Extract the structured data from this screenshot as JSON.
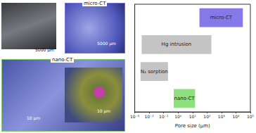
{
  "chart_data": {
    "type": "bar",
    "orientation": "horizontal",
    "categories": [
      "micro-CT",
      "Hg intrusion",
      "N₂ sorption",
      "nano-CT"
    ],
    "start": [
      30,
      0.003,
      0.0025,
      0.5
    ],
    "end": [
      30000,
      200,
      0.2,
      15
    ],
    "colors": [
      "#8479e6",
      "#c4c4c4",
      "#c4c4c4",
      "#8ee07e"
    ],
    "data_labels": true,
    "tick_labels": "x",
    "log": "x",
    "x_label": "Pore size (μm)",
    "xlim": [
      0.001,
      100000
    ],
    "xticks": [
      {
        "value": 0.001,
        "label": "10⁻³"
      },
      {
        "value": 0.01,
        "label": "10⁻²"
      },
      {
        "value": 0.1,
        "label": "10⁻¹"
      },
      {
        "value": 1,
        "label": "10⁰"
      },
      {
        "value": 10,
        "label": "10¹"
      },
      {
        "value": 100,
        "label": "10²"
      },
      {
        "value": 1000,
        "label": "10³"
      },
      {
        "value": 10000,
        "label": "10⁴"
      },
      {
        "value": 100000,
        "label": "10⁵"
      }
    ],
    "grid": false
  },
  "image_panels": [
    {
      "scale_bar": "5000 μm"
    },
    {
      "title": "micro-CT",
      "scale_bar": "5000 μm"
    },
    {
      "title": "nano-CT",
      "scale_bar": "10 μm"
    },
    {
      "scale_bar": "10 μm"
    }
  ]
}
